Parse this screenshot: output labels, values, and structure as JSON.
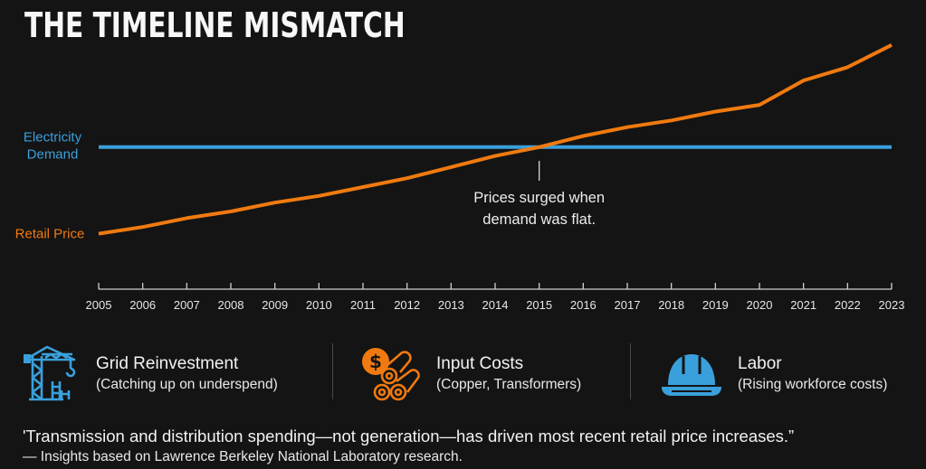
{
  "title": "THE TIMELINE MISMATCH",
  "chart_data": {
    "type": "line",
    "title": "THE TIMELINE MISMATCH",
    "xlabel": "",
    "ylabel": "",
    "x": [
      2005,
      2006,
      2007,
      2008,
      2009,
      2010,
      2011,
      2012,
      2013,
      2014,
      2015,
      2016,
      2017,
      2018,
      2019,
      2020,
      2021,
      2022,
      2023
    ],
    "ylim": [
      36,
      150
    ],
    "grid": false,
    "legend": "left-inline",
    "series": [
      {
        "name": "Electricity Demand",
        "label_lines": [
          "Electricity",
          "Demand"
        ],
        "color": "#3aa0dc",
        "values": [
          100,
          100,
          100,
          100,
          100,
          100,
          100,
          100,
          100,
          100,
          100,
          100,
          100,
          100,
          100,
          100,
          100,
          100,
          100
        ]
      },
      {
        "name": "Retail Price",
        "label_lines": [
          "Retail Price"
        ],
        "color": "#f07a10",
        "values": [
          61,
          64,
          68,
          71,
          75,
          78,
          82,
          86,
          91,
          96,
          100,
          105,
          109,
          112,
          116,
          119,
          130,
          136,
          146
        ]
      }
    ],
    "annotations": [
      {
        "x": 2015,
        "lines": [
          "Prices surged when",
          "demand was flat."
        ]
      }
    ]
  },
  "factors": [
    {
      "icon": "crane-icon",
      "title": "Grid Reinvestment",
      "subtitle": "(Catching up on underspend)",
      "color": "#3aa0dc"
    },
    {
      "icon": "copper-cost-icon",
      "title": "Input Costs",
      "subtitle": "(Copper, Transformers)",
      "color": "#f07a10"
    },
    {
      "icon": "hard-hat-icon",
      "title": "Labor",
      "subtitle": "(Rising workforce costs)",
      "color": "#3aa0dc"
    }
  ],
  "quote": "'Transmission and distribution spending—not generation—has driven most recent retail price increases.”",
  "source": "— Insights based on Lawrence Berkeley National Laboratory research."
}
